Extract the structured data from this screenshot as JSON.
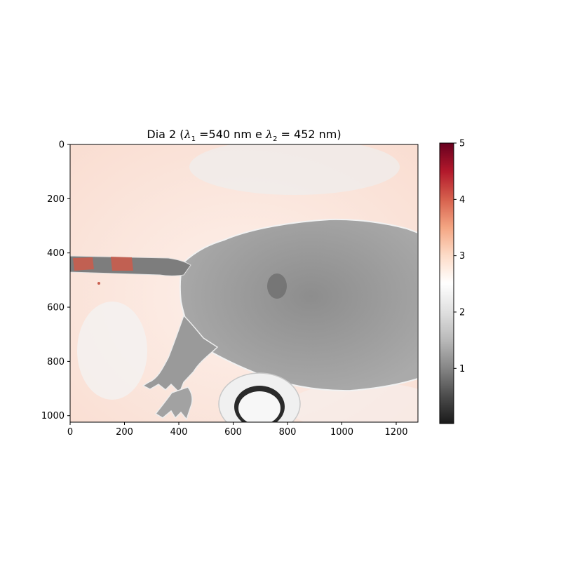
{
  "chart_data": {
    "type": "heatmap",
    "title": "Dia 2 (λ₁ =540 nm e λ₂ = 452 nm)",
    "title_parts": {
      "prefix": "Dia 2 (",
      "lambda1_sub": "1",
      "mid": " =540 nm e ",
      "lambda2_sub": "2",
      "suffix": " = 452 nm)"
    },
    "xlabel": "",
    "ylabel": "",
    "xlim": [
      0,
      1280
    ],
    "ylim": [
      1024,
      0
    ],
    "x_ticks": [
      0,
      200,
      400,
      600,
      800,
      1000,
      1200
    ],
    "y_ticks": [
      0,
      200,
      400,
      600,
      800,
      1000
    ],
    "colorbar": {
      "colormap": "RdGy_r",
      "range": [
        0.02,
        5
      ],
      "ticks": [
        1,
        2,
        3,
        4,
        5
      ],
      "stops": [
        "#1a1a1a",
        "#4d4d4d",
        "#878787",
        "#bababa",
        "#e0e0e0",
        "#ffffff",
        "#fddbc7",
        "#f4a582",
        "#d6604d",
        "#b2182b",
        "#67001f"
      ]
    },
    "grid": false,
    "legend": "none",
    "image_content": "ratio image of a rodent: body and legs in gray, tail with red patches near x 50 and 170, background light red, dark circular object near bottom at x 650"
  },
  "colors": {
    "background_tint": "#fbe6de",
    "body_gray": "#9c9c9c",
    "tail_red": "#d2604d"
  }
}
